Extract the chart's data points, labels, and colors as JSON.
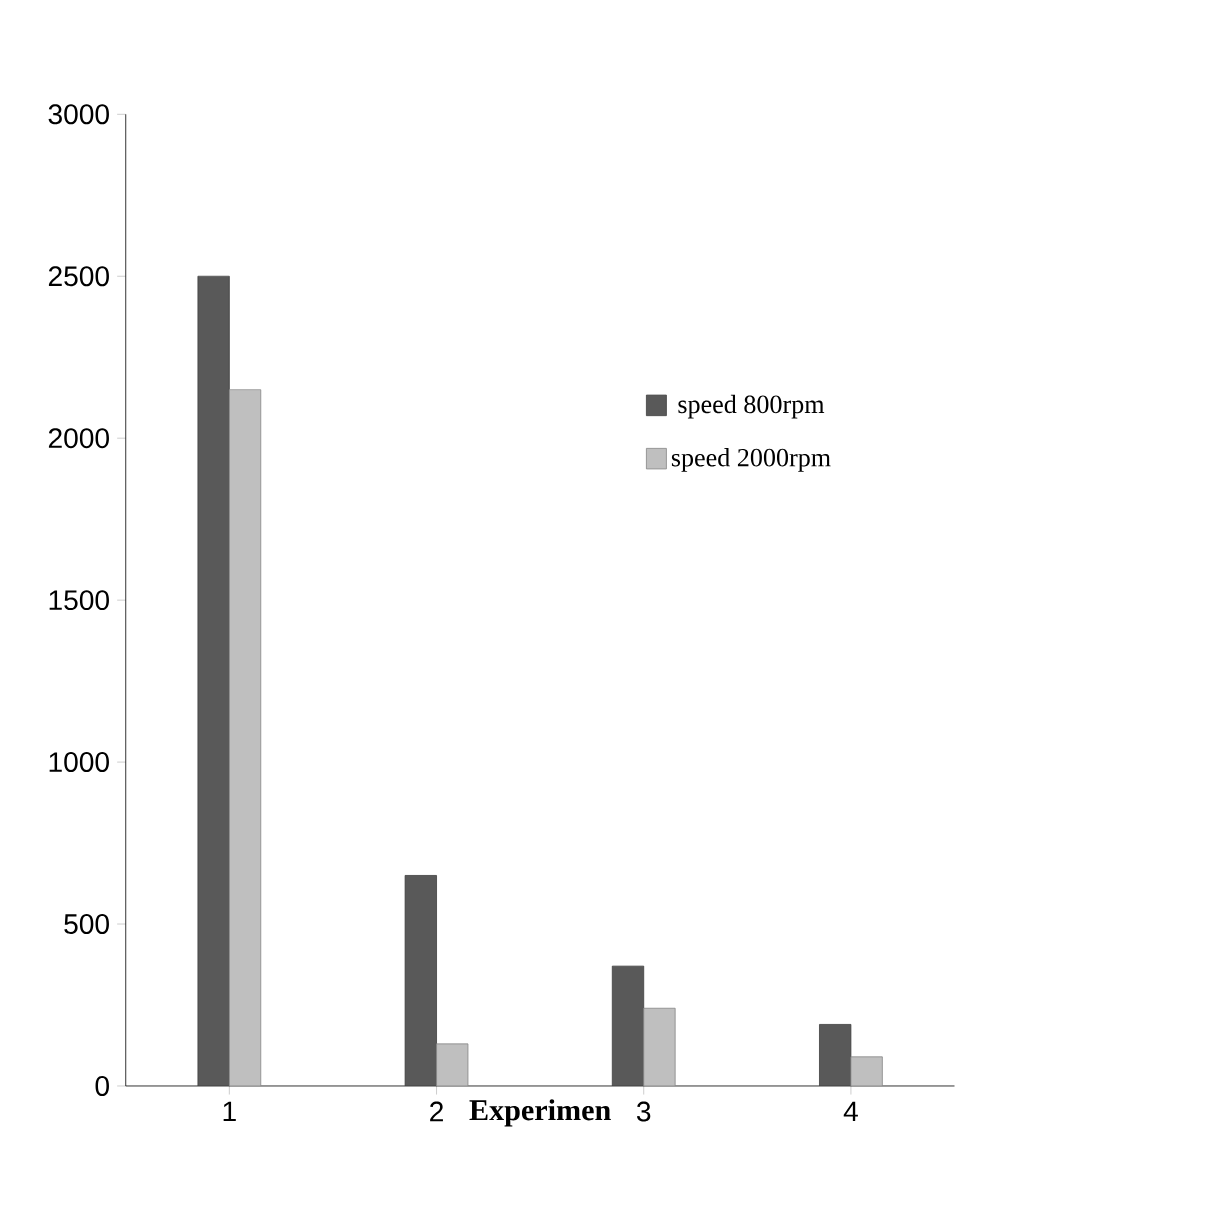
{
  "chart_data": {
    "type": "bar",
    "xlabel": "Experimen",
    "categories": [
      "1",
      "2",
      "3",
      "4"
    ],
    "series": [
      {
        "name": "speed 800rpm",
        "color": "#595959",
        "values": [
          2500,
          650,
          370,
          190
        ]
      },
      {
        "name": "speed 2000rpm",
        "color": "#bfbfbf",
        "values": [
          2150,
          130,
          240,
          90
        ]
      }
    ],
    "ylim": [
      0,
      3000
    ],
    "yticks": [
      0,
      500,
      1000,
      1500,
      2000,
      2500,
      3000
    ],
    "legend": "right",
    "grid": false
  }
}
